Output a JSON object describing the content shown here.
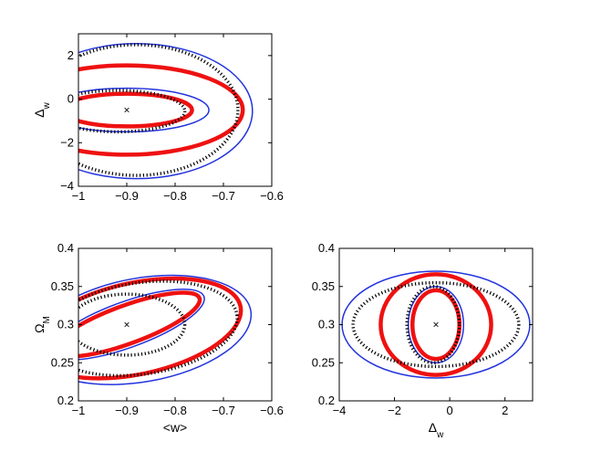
{
  "chart_data": [
    {
      "type": "contour",
      "panel": "top-left",
      "xlabel": "",
      "ylabel": "Δw",
      "xlim": [
        -1,
        -0.6
      ],
      "ylim": [
        -4,
        3
      ],
      "xticks": [
        "-1",
        "-0.9",
        "-0.8",
        "-0.7",
        "-0.6"
      ],
      "yticks": [
        "-4",
        "-2",
        "0",
        "2"
      ],
      "fiducial": {
        "x": -0.9,
        "y": -0.5,
        "marker": "×"
      },
      "series": [
        {
          "style": "red-thick",
          "color": "#ee1111",
          "ellipses": [
            {
              "cx": -0.9,
              "cy": -0.5,
              "rx": 0.135,
              "ry": 0.75,
              "angle_deg": 0
            },
            {
              "cx": -0.9,
              "cy": -0.5,
              "rx": 0.24,
              "ry": 2.05,
              "angle_deg": 0
            }
          ]
        },
        {
          "style": "blue-thin",
          "color": "#2233dd",
          "ellipses": [
            {
              "cx": -0.9,
              "cy": -0.5,
              "rx": 0.17,
              "ry": 1.0,
              "angle_deg": 0
            },
            {
              "cx": -0.88,
              "cy": -0.55,
              "rx": 0.24,
              "ry": 3.1,
              "angle_deg": 0
            }
          ]
        },
        {
          "style": "black-dotted",
          "color": "#000000",
          "ellipses": [
            {
              "cx": -0.92,
              "cy": -0.55,
              "rx": 0.14,
              "ry": 0.95,
              "angle_deg": 0
            },
            {
              "cx": -0.88,
              "cy": -0.5,
              "rx": 0.21,
              "ry": 3.0,
              "angle_deg": 0
            }
          ]
        }
      ]
    },
    {
      "type": "contour",
      "panel": "bottom-left",
      "xlabel": "<w>",
      "ylabel": "ΩM",
      "xlim": [
        -1,
        -0.6
      ],
      "ylim": [
        0.2,
        0.4
      ],
      "xticks": [
        "-1",
        "-0.9",
        "-0.8",
        "-0.7",
        "-0.6"
      ],
      "yticks": [
        "0.2",
        "0.25",
        "0.3",
        "0.35",
        "0.4"
      ],
      "fiducial": {
        "x": -0.9,
        "y": 0.3,
        "marker": "×"
      },
      "series": [
        {
          "style": "red-thick",
          "color": "#ee1111",
          "ellipses": [
            {
              "cx": -0.9,
              "cy": 0.3,
              "rx": 0.16,
              "ry": 0.025,
              "angle_deg": 20
            },
            {
              "cx": -0.88,
              "cy": 0.295,
              "rx": 0.22,
              "ry": 0.06,
              "angle_deg": 12
            }
          ]
        },
        {
          "style": "blue-thin",
          "color": "#2233dd",
          "ellipses": [
            {
              "cx": -0.9,
              "cy": 0.3,
              "rx": 0.17,
              "ry": 0.03,
              "angle_deg": 20
            },
            {
              "cx": -0.87,
              "cy": 0.293,
              "rx": 0.23,
              "ry": 0.068,
              "angle_deg": 10
            }
          ]
        },
        {
          "style": "black-dotted",
          "color": "#000000",
          "ellipses": [
            {
              "cx": -0.9,
              "cy": 0.3,
              "rx": 0.12,
              "ry": 0.04,
              "angle_deg": 0
            },
            {
              "cx": -0.87,
              "cy": 0.295,
              "rx": 0.2,
              "ry": 0.06,
              "angle_deg": 8
            }
          ]
        }
      ]
    },
    {
      "type": "contour",
      "panel": "bottom-right",
      "xlabel": "Δw",
      "ylabel": "",
      "xlim": [
        -4,
        3
      ],
      "ylim": [
        0.2,
        0.4
      ],
      "xticks": [
        "-4",
        "-2",
        "0",
        "2"
      ],
      "yticks": [
        "0.2",
        "0.25",
        "0.3",
        "0.35",
        "0.4"
      ],
      "fiducial": {
        "x": -0.5,
        "y": 0.3,
        "marker": "×"
      },
      "series": [
        {
          "style": "red-thick",
          "color": "#ee1111",
          "ellipses": [
            {
              "cx": -0.5,
              "cy": 0.3,
              "rx": 0.85,
              "ry": 0.045,
              "angle_deg": 0
            },
            {
              "cx": -0.5,
              "cy": 0.3,
              "rx": 2.0,
              "ry": 0.066,
              "angle_deg": 0
            }
          ]
        },
        {
          "style": "blue-thin",
          "color": "#2233dd",
          "ellipses": [
            {
              "cx": -0.5,
              "cy": 0.3,
              "rx": 1.0,
              "ry": 0.05,
              "angle_deg": 0
            },
            {
              "cx": -0.5,
              "cy": 0.3,
              "rx": 3.4,
              "ry": 0.07,
              "angle_deg": 0
            }
          ]
        },
        {
          "style": "black-dotted",
          "color": "#000000",
          "ellipses": [
            {
              "cx": -0.6,
              "cy": 0.3,
              "rx": 0.95,
              "ry": 0.05,
              "angle_deg": 0
            },
            {
              "cx": -0.5,
              "cy": 0.3,
              "rx": 3.0,
              "ry": 0.055,
              "angle_deg": 0
            }
          ]
        }
      ]
    }
  ]
}
